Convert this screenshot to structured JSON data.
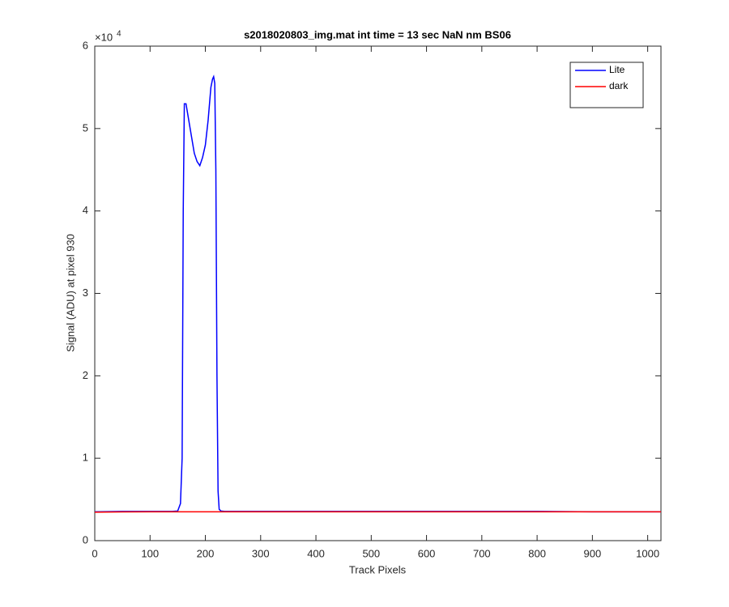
{
  "chart_data": {
    "type": "line",
    "title": "s2018020803_img.mat int time = 13 sec  NaN nm BS06",
    "xlabel": "Track Pixels",
    "ylabel": "Signal (ADU) at pixel 930",
    "y_scale_base": "×10",
    "y_scale_exp": "4",
    "x": [
      0,
      50,
      100,
      140,
      150,
      155,
      158,
      160,
      162,
      165,
      170,
      175,
      180,
      185,
      190,
      195,
      200,
      205,
      210,
      213,
      215,
      217,
      219,
      221,
      223,
      225,
      228,
      235,
      300,
      400,
      500,
      600,
      700,
      800,
      900,
      1000,
      1024
    ],
    "series": [
      {
        "name": "Lite",
        "color": "#0000ff",
        "values": [
          3500,
          3550,
          3550,
          3550,
          3600,
          4500,
          10000,
          40000,
          53000,
          53000,
          51000,
          49000,
          47000,
          46000,
          45500,
          46500,
          48000,
          51000,
          55000,
          56000,
          56300,
          55500,
          45000,
          20000,
          6000,
          3800,
          3600,
          3550,
          3550,
          3550,
          3550,
          3550,
          3550,
          3550,
          3500,
          3500,
          3500
        ]
      },
      {
        "name": "dark",
        "color": "#ff0000",
        "values": [
          3450,
          3480,
          3500,
          3500,
          3500,
          3500,
          3500,
          3500,
          3500,
          3500,
          3500,
          3500,
          3500,
          3500,
          3500,
          3500,
          3500,
          3500,
          3500,
          3500,
          3500,
          3500,
          3500,
          3500,
          3500,
          3500,
          3500,
          3500,
          3500,
          3500,
          3500,
          3500,
          3500,
          3500,
          3500,
          3500,
          3500
        ]
      }
    ],
    "xlim": [
      0,
      1024
    ],
    "xticks": [
      0,
      100,
      200,
      300,
      400,
      500,
      600,
      700,
      800,
      900,
      1000
    ],
    "ylim": [
      0,
      60000
    ],
    "yticks": [
      {
        "value": 0,
        "label": "0"
      },
      {
        "value": 10000,
        "label": "1"
      },
      {
        "value": 20000,
        "label": "2"
      },
      {
        "value": 30000,
        "label": "3"
      },
      {
        "value": 40000,
        "label": "4"
      },
      {
        "value": 50000,
        "label": "5"
      },
      {
        "value": 60000,
        "label": "6"
      }
    ],
    "legend": "northeast",
    "grid": false
  }
}
